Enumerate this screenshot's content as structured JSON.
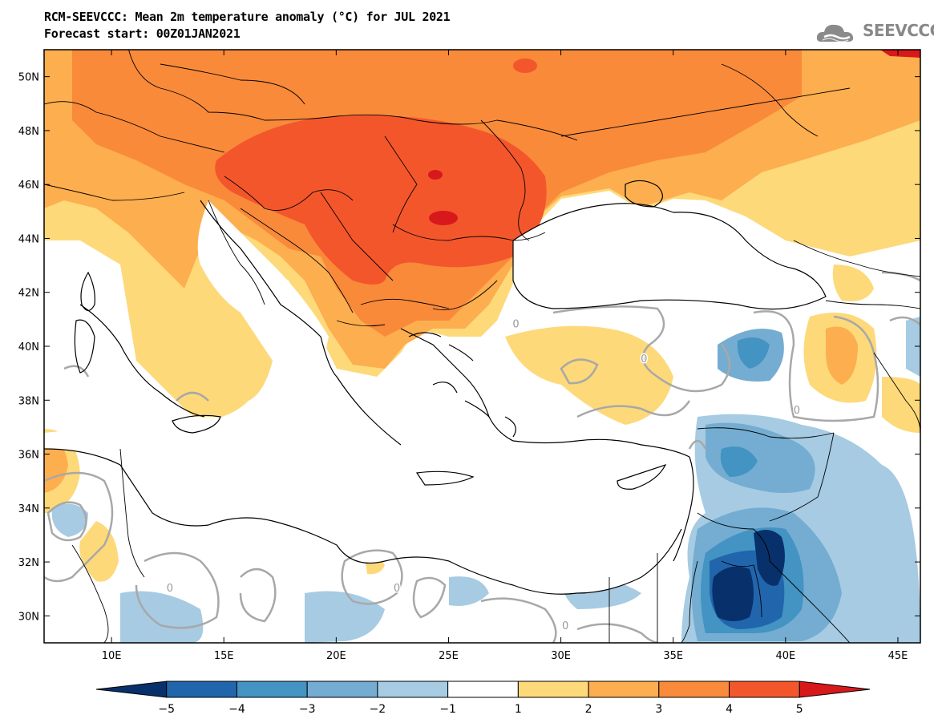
{
  "header": {
    "title_line1": "RCM-SEEVCCC: Mean 2m temperature anomaly (°C) for JUL 2021",
    "title_line2": "Forecast start: 00Z01JAN2021",
    "logo_text": "SEEVCCC"
  },
  "map": {
    "lon_range": [
      7,
      46
    ],
    "lat_range": [
      29,
      51
    ],
    "lon_ticks": [
      {
        "value": 10,
        "label": "10E"
      },
      {
        "value": 15,
        "label": "15E"
      },
      {
        "value": 20,
        "label": "20E"
      },
      {
        "value": 25,
        "label": "25E"
      },
      {
        "value": 30,
        "label": "30E"
      },
      {
        "value": 35,
        "label": "35E"
      },
      {
        "value": 40,
        "label": "40E"
      },
      {
        "value": 45,
        "label": "45E"
      }
    ],
    "lat_ticks": [
      {
        "value": 30,
        "label": "30N"
      },
      {
        "value": 32,
        "label": "32N"
      },
      {
        "value": 34,
        "label": "34N"
      },
      {
        "value": 36,
        "label": "36N"
      },
      {
        "value": 38,
        "label": "38N"
      },
      {
        "value": 40,
        "label": "40N"
      },
      {
        "value": 42,
        "label": "42N"
      },
      {
        "value": 44,
        "label": "44N"
      },
      {
        "value": 46,
        "label": "46N"
      },
      {
        "value": 48,
        "label": "48N"
      },
      {
        "value": 50,
        "label": "50N"
      }
    ],
    "contour_labels": [
      {
        "lon": 33.7,
        "lat": 39.4,
        "text": "0"
      },
      {
        "lon": 12.6,
        "lat": 30.9,
        "text": "0"
      },
      {
        "lon": 22.7,
        "lat": 30.9,
        "text": "0"
      },
      {
        "lon": 30.2,
        "lat": 29.5,
        "text": "0"
      },
      {
        "lon": 40.5,
        "lat": 37.5,
        "text": "0"
      },
      {
        "lon": 28.0,
        "lat": 40.7,
        "text": "0"
      }
    ]
  },
  "colorbar": {
    "colors": [
      "#08306b",
      "#2166ac",
      "#4393c3",
      "#74add1",
      "#a6cbe3",
      "#ffffff",
      "#fdd97a",
      "#fdae4e",
      "#f98a3a",
      "#f4562c",
      "#d7191c"
    ],
    "labels": [
      "−5",
      "−4",
      "−3",
      "−2",
      "−1",
      "1",
      "2",
      "3",
      "4",
      "5"
    ]
  }
}
